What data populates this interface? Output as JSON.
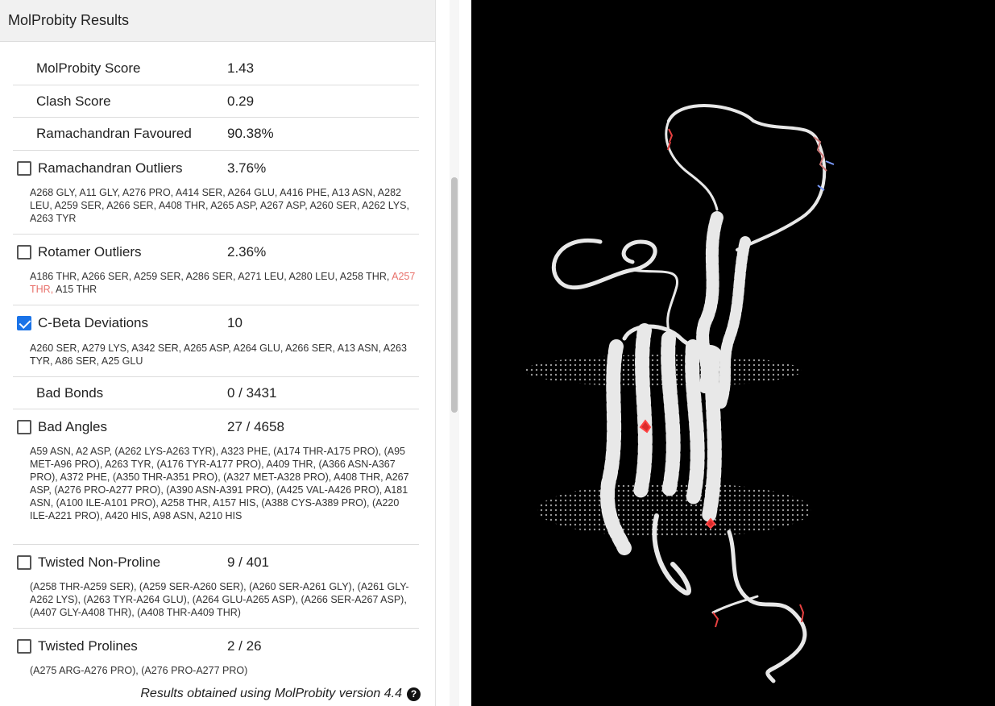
{
  "panel": {
    "title": "MolProbity Results",
    "footer": "Results obtained using MolProbity version 4.4"
  },
  "metrics": [
    {
      "label": "MolProbity Score",
      "value": "1.43"
    },
    {
      "label": "Clash Score",
      "value": "0.29"
    },
    {
      "label": "Ramachandran Favoured",
      "value": "90.38%"
    },
    {
      "label": "Ramachandran Outliers",
      "value": "3.76%",
      "checked": false,
      "residues": "A268 GLY, A11 GLY, A276 PRO, A414 SER, A264 GLU, A416 PHE, A13 ASN, A282 LEU, A259 SER, A266 SER, A408 THR, A265 ASP, A267 ASP, A260 SER, A262 LYS, A263 TYR"
    },
    {
      "label": "Rotamer Outliers",
      "value": "2.36%",
      "checked": false,
      "residues_pre": "A186 THR, A266 SER, A259 SER, A286 SER, A271 LEU, A280 LEU, A258 THR, ",
      "residues_highlight": "A257 THR,",
      "residues_post": " A15 THR"
    },
    {
      "label": "C-Beta Deviations",
      "value": "10",
      "checked": true,
      "residues": "A260 SER, A279 LYS, A342 SER, A265 ASP, A264 GLU, A266 SER, A13 ASN, A263 TYR, A86 SER, A25 GLU"
    },
    {
      "label": "Bad Bonds",
      "value": "0 / 3431"
    },
    {
      "label": "Bad Angles",
      "value": "27 / 4658",
      "checked": false,
      "residues": "A59 ASN, A2 ASP, (A262 LYS-A263 TYR), A323 PHE, (A174 THR-A175 PRO), (A95 MET-A96 PRO), A263 TYR, (A176 TYR-A177 PRO), A409 THR, (A366 ASN-A367 PRO), A372 PHE, (A350 THR-A351 PRO), (A327 MET-A328 PRO), A408 THR, A267 ASP, (A276 PRO-A277 PRO), (A390 ASN-A391 PRO), (A425 VAL-A426 PRO), A181 ASN, (A100 ILE-A101 PRO), A258 THR, A157 HIS, (A388 CYS-A389 PRO), (A220 ILE-A221 PRO), A420 HIS, A98 ASN, A210 HIS"
    },
    {
      "label": "Twisted Non-Proline",
      "value": "9 / 401",
      "checked": false,
      "residues": "(A258 THR-A259 SER), (A259 SER-A260 SER), (A260 SER-A261 GLY), (A261 GLY-A262 LYS), (A263 TYR-A264 GLU), (A264 GLU-A265 ASP), (A266 SER-A267 ASP), (A407 GLY-A408 THR), (A408 THR-A409 THR)"
    },
    {
      "label": "Twisted Prolines",
      "value": "2 / 26",
      "checked": false,
      "residues": "(A275 ARG-A276 PRO), (A276 PRO-A277 PRO)"
    }
  ],
  "viewer": {
    "background": "#000000",
    "icon": "protein-structure-ribbon"
  }
}
